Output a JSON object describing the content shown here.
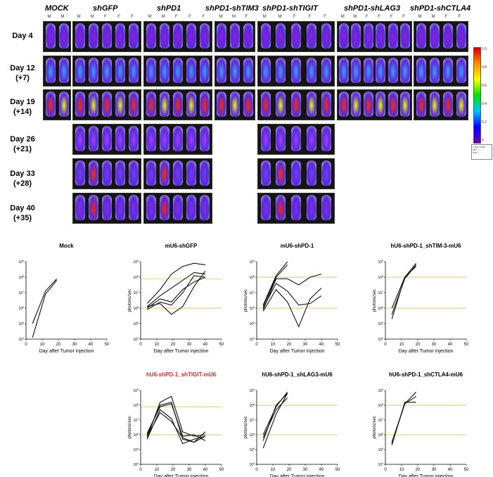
{
  "heatmap": {
    "groups": [
      "MOCK",
      "shGFP",
      "shPD1",
      "shPD1-shTIM3",
      "shPD1-shTIGIT",
      "shPD1-shLAG3",
      "shPD1-shCTLA4"
    ],
    "sex_labels": [
      "M",
      "M",
      "F",
      "F",
      "F"
    ],
    "days": [
      {
        "line1": "Day 4",
        "line2": ""
      },
      {
        "line1": "Day 12",
        "line2": "(+7)"
      },
      {
        "line1": "Day 19",
        "line2": "(+14)"
      },
      {
        "line1": "Day 26",
        "line2": "(+21)"
      },
      {
        "line1": "Day 33",
        "line2": "(+28)"
      },
      {
        "line1": "Day 40",
        "line2": "(+35)"
      }
    ],
    "colorbar_ticks": [
      "1.0",
      "0.8",
      "0.6",
      "0.4",
      "0.2",
      "0"
    ]
  },
  "chart_data": [
    {
      "type": "line",
      "title": "Mock",
      "title_color": "#000000",
      "xlabel": "Day after Tumor injection",
      "ylabel": "",
      "xlim": [
        0,
        50
      ],
      "ylim_exp": [
        4,
        9
      ],
      "thresholds": [],
      "series": [
        {
          "x": [
            4,
            12,
            19
          ],
          "y": [
            5,
            7.1,
            7.9
          ]
        },
        {
          "x": [
            4,
            12,
            19
          ],
          "y": [
            4.1,
            6.9,
            7.8
          ]
        }
      ]
    },
    {
      "type": "line",
      "title": "mU6-shGFP",
      "title_color": "#000000",
      "xlabel": "Day after Tumor injection",
      "ylabel": "photons/sec",
      "xlim": [
        0,
        50
      ],
      "ylim_exp": [
        4,
        9
      ],
      "thresholds": [
        7.9,
        6
      ],
      "series": [
        {
          "x": [
            4,
            12,
            19,
            26,
            33,
            40
          ],
          "y": [
            6.1,
            6.3,
            5.6,
            6.1,
            7.4,
            8.4
          ]
        },
        {
          "x": [
            4,
            12,
            19,
            26,
            33,
            40
          ],
          "y": [
            6,
            6.6,
            6.4,
            7.2,
            7.7,
            8
          ]
        },
        {
          "x": [
            4,
            12,
            19,
            26,
            33,
            40
          ],
          "y": [
            6.1,
            6.8,
            7.3,
            7.8,
            8.3,
            8.2
          ]
        },
        {
          "x": [
            4,
            12,
            19,
            26,
            33,
            40
          ],
          "y": [
            6.3,
            7.2,
            8.2,
            8.7,
            8.9,
            8.8
          ]
        },
        {
          "x": [
            4,
            12,
            19,
            26,
            33,
            40
          ],
          "y": [
            5.9,
            6.4,
            6.2,
            7,
            8.1,
            8
          ]
        }
      ]
    },
    {
      "type": "line",
      "title": "mU6-shPD-1",
      "title_color": "#000000",
      "xlabel": "Day after Tumor injection",
      "ylabel": "photons/sec",
      "xlim": [
        0,
        50
      ],
      "ylim_exp": [
        4,
        9
      ],
      "thresholds": [
        8,
        6
      ],
      "series": [
        {
          "x": [
            4,
            12,
            19
          ],
          "y": [
            6.2,
            8.1,
            9
          ]
        },
        {
          "x": [
            4,
            12,
            19
          ],
          "y": [
            6.1,
            8,
            8.8
          ]
        },
        {
          "x": [
            4,
            12,
            19,
            26,
            33,
            40
          ],
          "y": [
            5.9,
            7.9,
            7.9,
            7.5,
            8,
            8.2
          ]
        },
        {
          "x": [
            4,
            12,
            19,
            26,
            33,
            40
          ],
          "y": [
            6,
            7.6,
            7.1,
            6.2,
            6.3,
            6.8
          ]
        },
        {
          "x": [
            4,
            12,
            19,
            26,
            33,
            40
          ],
          "y": [
            5.8,
            7.2,
            6.4,
            4.8,
            6.6,
            7.3
          ]
        }
      ]
    },
    {
      "type": "line",
      "title": "hU6-shPD-1_shTIM-3-mU6",
      "title_color": "#000000",
      "xlabel": "Day after Tumor injection",
      "ylabel": "photons/sec",
      "xlim": [
        0,
        50
      ],
      "ylim_exp": [
        4,
        9
      ],
      "thresholds": [
        8,
        6
      ],
      "series": [
        {
          "x": [
            4,
            12,
            19
          ],
          "y": [
            5.3,
            8,
            8.9
          ]
        },
        {
          "x": [
            4,
            12,
            19
          ],
          "y": [
            5.6,
            7.9,
            8.8
          ]
        },
        {
          "x": [
            4,
            12,
            19
          ],
          "y": [
            6,
            8,
            8.7
          ]
        }
      ]
    },
    {
      "type": "line",
      "title": "hU6-shPD-1_shTIGIT-mU6",
      "title_color": "#e02020",
      "xlabel": "Day after Tumor injection",
      "ylabel": "photons/sec",
      "xlim": [
        0,
        50
      ],
      "ylim_exp": [
        4,
        9
      ],
      "thresholds": [
        7.9,
        6
      ],
      "series": [
        {
          "x": [
            4,
            12,
            19,
            26,
            33,
            40
          ],
          "y": [
            5.8,
            8.2,
            8.6,
            6.2,
            5.9,
            6
          ]
        },
        {
          "x": [
            4,
            12,
            19,
            26,
            33,
            40
          ],
          "y": [
            6,
            8,
            8.2,
            5.7,
            5.5,
            6.2
          ]
        },
        {
          "x": [
            4,
            12,
            19,
            26,
            33,
            40
          ],
          "y": [
            6.1,
            7.9,
            8.1,
            5.9,
            6,
            5.6
          ]
        },
        {
          "x": [
            4,
            12,
            19,
            26,
            33,
            40
          ],
          "y": [
            5.7,
            7.7,
            7.1,
            5.4,
            5.7,
            5.9
          ]
        },
        {
          "x": [
            4,
            12,
            19,
            26,
            33,
            40
          ],
          "y": [
            5.9,
            7.5,
            6.9,
            5.8,
            5.5,
            5.9
          ]
        }
      ]
    },
    {
      "type": "line",
      "title": "hU6-shPD-1_shLAG3-mU6",
      "title_color": "#000000",
      "xlabel": "Day after Tumor injection",
      "ylabel": "photons/sec",
      "xlim": [
        0,
        50
      ],
      "ylim_exp": [
        4,
        9
      ],
      "thresholds": [
        8,
        6
      ],
      "series": [
        {
          "x": [
            4,
            12,
            19
          ],
          "y": [
            6,
            7.9,
            8.9
          ]
        },
        {
          "x": [
            4,
            12,
            19
          ],
          "y": [
            5.6,
            8,
            8.8
          ]
        },
        {
          "x": [
            4,
            12,
            19
          ],
          "y": [
            5.1,
            7.4,
            8.8
          ]
        },
        {
          "x": [
            4,
            12,
            19
          ],
          "y": [
            5.8,
            7.7,
            8.5
          ]
        }
      ]
    },
    {
      "type": "line",
      "title": "hU6-shPD-1_shCTLA4-mU6",
      "title_color": "#000000",
      "xlabel": "Day after Tumor injection",
      "ylabel": "photons/sec",
      "xlim": [
        0,
        50
      ],
      "ylim_exp": [
        4,
        9
      ],
      "thresholds": [
        8,
        6
      ],
      "series": [
        {
          "x": [
            4,
            12,
            19
          ],
          "y": [
            5.3,
            8.2,
            8.2
          ]
        },
        {
          "x": [
            4,
            12,
            19
          ],
          "y": [
            5.5,
            8.1,
            8.9
          ]
        },
        {
          "x": [
            4,
            12,
            19
          ],
          "y": [
            5.4,
            8.1,
            8.6
          ]
        }
      ]
    }
  ]
}
